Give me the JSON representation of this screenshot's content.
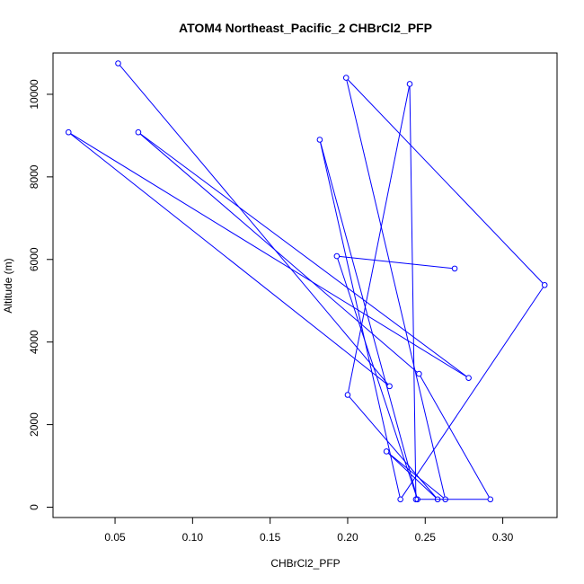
{
  "chart_data": {
    "type": "line",
    "title": "ATOM4 Northeast_Pacific_2 CHBrCl2_PFP",
    "xlabel": "CHBrCl2_PFP",
    "ylabel": "Altitude (m)",
    "xlim": [
      0.01,
      0.335
    ],
    "ylim": [
      -250,
      11000
    ],
    "x_ticks": [
      0.05,
      0.1,
      0.15,
      0.2,
      0.25,
      0.3
    ],
    "x_tick_labels": [
      "0.05",
      "0.10",
      "0.15",
      "0.20",
      "0.25",
      "0.30"
    ],
    "y_ticks": [
      0,
      2000,
      4000,
      6000,
      8000,
      10000
    ],
    "y_tick_labels": [
      "0",
      "2000",
      "4000",
      "6000",
      "8000",
      "10000"
    ],
    "grid": false,
    "series": [
      {
        "color": "#0000ff",
        "marker": "open-circle",
        "points": [
          {
            "x": 0.052,
            "y": 10750
          },
          {
            "x": 0.227,
            "y": 2930
          },
          {
            "x": 0.02,
            "y": 9080
          },
          {
            "x": 0.278,
            "y": 3130
          },
          {
            "x": 0.065,
            "y": 9080
          },
          {
            "x": 0.246,
            "y": 3230
          },
          {
            "x": 0.292,
            "y": 190
          },
          {
            "x": 0.244,
            "y": 190
          },
          {
            "x": 0.24,
            "y": 10250
          },
          {
            "x": 0.2,
            "y": 2720
          },
          {
            "x": 0.258,
            "y": 190
          },
          {
            "x": 0.225,
            "y": 1350
          },
          {
            "x": 0.263,
            "y": 190
          },
          {
            "x": 0.199,
            "y": 10400
          },
          {
            "x": 0.327,
            "y": 5380
          },
          {
            "x": 0.234,
            "y": 190
          },
          {
            "x": 0.182,
            "y": 8900
          },
          {
            "x": 0.245,
            "y": 190
          },
          {
            "x": 0.193,
            "y": 6080
          },
          {
            "x": 0.269,
            "y": 5780
          }
        ]
      }
    ]
  }
}
